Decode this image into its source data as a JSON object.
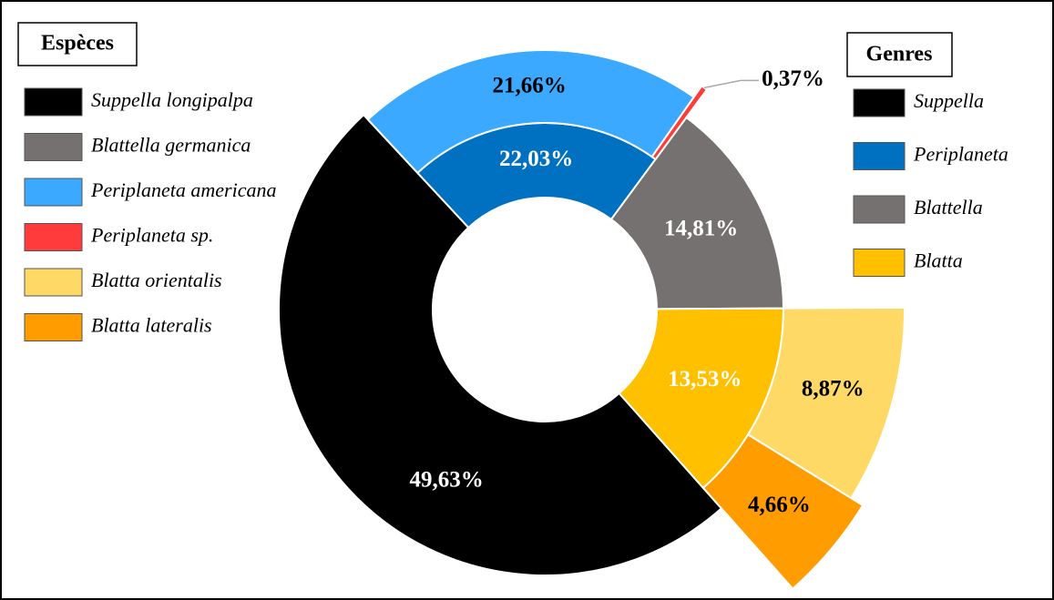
{
  "chart_data": {
    "type": "sunburst",
    "rings": [
      {
        "title": "Genres",
        "categories": [
          "Suppella",
          "Periplaneta",
          "Blattella",
          "Blatta"
        ],
        "colors": [
          "#000000",
          "#0070c0",
          "#767171",
          "#ffc000"
        ],
        "values": [
          49.63,
          22.03,
          14.81,
          13.53
        ],
        "value_labels": [
          "49,63%",
          "22,03%",
          "14,81%",
          "13,53%"
        ]
      },
      {
        "title": "Espèces",
        "categories": [
          "Suppella longipalpa",
          "Blattella germanica",
          "Periplaneta americana",
          "Periplaneta sp.",
          "Blatta orientalis",
          "Blatta lateralis"
        ],
        "colors": [
          "#000000",
          "#767171",
          "#3aa9ff",
          "#ff3b3b",
          "#ffd966",
          "#ff9c00"
        ],
        "values": [
          null,
          null,
          21.66,
          0.37,
          8.87,
          4.66
        ],
        "value_labels": [
          null,
          null,
          "21,66%",
          "0,37%",
          "8,87%",
          "4,66%"
        ]
      }
    ]
  }
}
